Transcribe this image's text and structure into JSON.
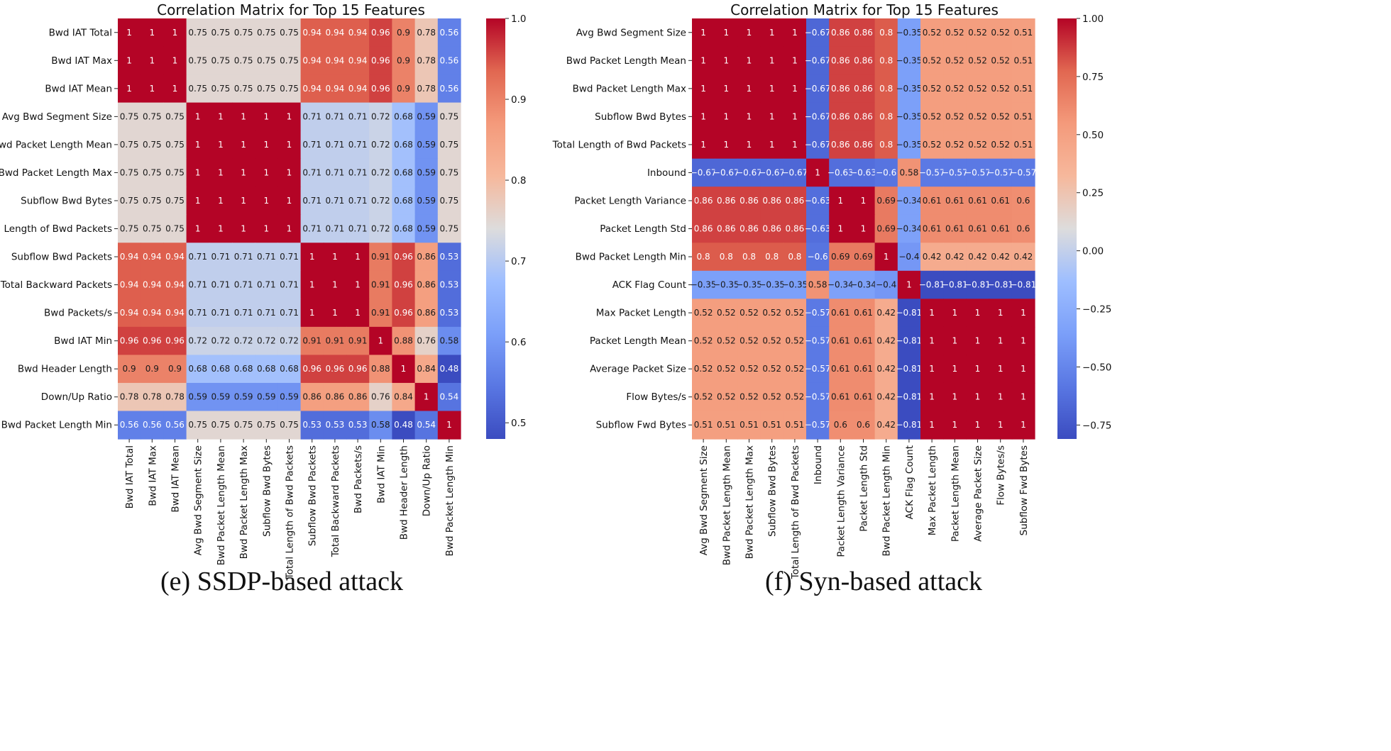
{
  "chart_data": [
    {
      "type": "heatmap",
      "title": "Correlation Matrix for Top 15 Features",
      "caption": "(e) SSDP-based attack",
      "labels": [
        "Bwd IAT Total",
        "Bwd IAT Max",
        "Bwd IAT Mean",
        "Avg Bwd Segment Size",
        "Bwd Packet Length Mean",
        "Bwd Packet Length Max",
        "Subflow Bwd Bytes",
        "Total Length of Bwd Packets",
        "Subflow Bwd Packets",
        "Total Backward Packets",
        "Bwd Packets/s",
        "Bwd IAT Min",
        "Bwd Header Length",
        "Down/Up Ratio",
        "Bwd Packet Length Min"
      ],
      "matrix": [
        [
          1,
          1,
          1,
          0.75,
          0.75,
          0.75,
          0.75,
          0.75,
          0.94,
          0.94,
          0.94,
          0.96,
          0.9,
          0.78,
          0.56
        ],
        [
          1,
          1,
          1,
          0.75,
          0.75,
          0.75,
          0.75,
          0.75,
          0.94,
          0.94,
          0.94,
          0.96,
          0.9,
          0.78,
          0.56
        ],
        [
          1,
          1,
          1,
          0.75,
          0.75,
          0.75,
          0.75,
          0.75,
          0.94,
          0.94,
          0.94,
          0.96,
          0.9,
          0.78,
          0.56
        ],
        [
          0.75,
          0.75,
          0.75,
          1,
          1,
          1,
          1,
          1,
          0.71,
          0.71,
          0.71,
          0.72,
          0.68,
          0.59,
          0.75
        ],
        [
          0.75,
          0.75,
          0.75,
          1,
          1,
          1,
          1,
          1,
          0.71,
          0.71,
          0.71,
          0.72,
          0.68,
          0.59,
          0.75
        ],
        [
          0.75,
          0.75,
          0.75,
          1,
          1,
          1,
          1,
          1,
          0.71,
          0.71,
          0.71,
          0.72,
          0.68,
          0.59,
          0.75
        ],
        [
          0.75,
          0.75,
          0.75,
          1,
          1,
          1,
          1,
          1,
          0.71,
          0.71,
          0.71,
          0.72,
          0.68,
          0.59,
          0.75
        ],
        [
          0.75,
          0.75,
          0.75,
          1,
          1,
          1,
          1,
          1,
          0.71,
          0.71,
          0.71,
          0.72,
          0.68,
          0.59,
          0.75
        ],
        [
          0.94,
          0.94,
          0.94,
          0.71,
          0.71,
          0.71,
          0.71,
          0.71,
          1,
          1,
          1,
          0.91,
          0.96,
          0.86,
          0.53
        ],
        [
          0.94,
          0.94,
          0.94,
          0.71,
          0.71,
          0.71,
          0.71,
          0.71,
          1,
          1,
          1,
          0.91,
          0.96,
          0.86,
          0.53
        ],
        [
          0.94,
          0.94,
          0.94,
          0.71,
          0.71,
          0.71,
          0.71,
          0.71,
          1,
          1,
          1,
          0.91,
          0.96,
          0.86,
          0.53
        ],
        [
          0.96,
          0.96,
          0.96,
          0.72,
          0.72,
          0.72,
          0.72,
          0.72,
          0.91,
          0.91,
          0.91,
          1,
          0.88,
          0.76,
          0.58
        ],
        [
          0.9,
          0.9,
          0.9,
          0.68,
          0.68,
          0.68,
          0.68,
          0.68,
          0.96,
          0.96,
          0.96,
          0.88,
          1,
          0.84,
          0.48
        ],
        [
          0.78,
          0.78,
          0.78,
          0.59,
          0.59,
          0.59,
          0.59,
          0.59,
          0.86,
          0.86,
          0.86,
          0.76,
          0.84,
          1,
          0.54
        ],
        [
          0.56,
          0.56,
          0.56,
          0.75,
          0.75,
          0.75,
          0.75,
          0.75,
          0.53,
          0.53,
          0.53,
          0.58,
          0.48,
          0.54,
          1
        ]
      ],
      "vmin": 0.48,
      "vmax": 1.0,
      "colorbar_ticks": [
        "1.0",
        "0.9",
        "0.8",
        "0.7",
        "0.6",
        "0.5"
      ],
      "colorbar_tick_values": [
        1.0,
        0.9,
        0.8,
        0.7,
        0.6,
        0.5
      ],
      "colormap": "coolwarm"
    },
    {
      "type": "heatmap",
      "title": "Correlation Matrix for Top 15 Features",
      "caption": "(f) Syn-based attack",
      "labels": [
        "Avg Bwd Segment Size",
        "Bwd Packet Length Mean",
        "Bwd Packet Length Max",
        "Subflow Bwd Bytes",
        "Total Length of Bwd Packets",
        "Inbound",
        "Packet Length Variance",
        "Packet Length Std",
        "Bwd Packet Length Min",
        "ACK Flag Count",
        "Max Packet Length",
        "Packet Length Mean",
        "Average Packet Size",
        "Flow Bytes/s",
        "Subflow Fwd Bytes"
      ],
      "matrix": [
        [
          1,
          1,
          1,
          1,
          1,
          -0.67,
          0.86,
          0.86,
          0.8,
          -0.35,
          0.52,
          0.52,
          0.52,
          0.52,
          0.51
        ],
        [
          1,
          1,
          1,
          1,
          1,
          -0.67,
          0.86,
          0.86,
          0.8,
          -0.35,
          0.52,
          0.52,
          0.52,
          0.52,
          0.51
        ],
        [
          1,
          1,
          1,
          1,
          1,
          -0.67,
          0.86,
          0.86,
          0.8,
          -0.35,
          0.52,
          0.52,
          0.52,
          0.52,
          0.51
        ],
        [
          1,
          1,
          1,
          1,
          1,
          -0.67,
          0.86,
          0.86,
          0.8,
          -0.35,
          0.52,
          0.52,
          0.52,
          0.52,
          0.51
        ],
        [
          1,
          1,
          1,
          1,
          1,
          -0.67,
          0.86,
          0.86,
          0.8,
          -0.35,
          0.52,
          0.52,
          0.52,
          0.52,
          0.51
        ],
        [
          -0.67,
          -0.67,
          -0.67,
          -0.67,
          -0.67,
          1,
          -0.63,
          -0.63,
          -0.6,
          0.58,
          -0.57,
          -0.57,
          -0.57,
          -0.57,
          -0.57
        ],
        [
          0.86,
          0.86,
          0.86,
          0.86,
          0.86,
          -0.63,
          1,
          1,
          0.69,
          -0.34,
          0.61,
          0.61,
          0.61,
          0.61,
          0.6
        ],
        [
          0.86,
          0.86,
          0.86,
          0.86,
          0.86,
          -0.63,
          1,
          1,
          0.69,
          -0.34,
          0.61,
          0.61,
          0.61,
          0.61,
          0.6
        ],
        [
          0.8,
          0.8,
          0.8,
          0.8,
          0.8,
          -0.6,
          0.69,
          0.69,
          1,
          -0.4,
          0.42,
          0.42,
          0.42,
          0.42,
          0.42
        ],
        [
          -0.35,
          -0.35,
          -0.35,
          -0.35,
          -0.35,
          0.58,
          -0.34,
          -0.34,
          -0.4,
          1,
          -0.81,
          -0.81,
          -0.81,
          -0.81,
          -0.81
        ],
        [
          0.52,
          0.52,
          0.52,
          0.52,
          0.52,
          -0.57,
          0.61,
          0.61,
          0.42,
          -0.81,
          1,
          1,
          1,
          1,
          1
        ],
        [
          0.52,
          0.52,
          0.52,
          0.52,
          0.52,
          -0.57,
          0.61,
          0.61,
          0.42,
          -0.81,
          1,
          1,
          1,
          1,
          1
        ],
        [
          0.52,
          0.52,
          0.52,
          0.52,
          0.52,
          -0.57,
          0.61,
          0.61,
          0.42,
          -0.81,
          1,
          1,
          1,
          1,
          1
        ],
        [
          0.52,
          0.52,
          0.52,
          0.52,
          0.52,
          -0.57,
          0.61,
          0.61,
          0.42,
          -0.81,
          1,
          1,
          1,
          1,
          1
        ],
        [
          0.51,
          0.51,
          0.51,
          0.51,
          0.51,
          -0.57,
          0.6,
          0.6,
          0.42,
          -0.81,
          1,
          1,
          1,
          1,
          1
        ]
      ],
      "vmin": -0.81,
      "vmax": 1.0,
      "colorbar_ticks": [
        "1.00",
        "0.75",
        "0.50",
        "0.25",
        "0.00",
        "−0.25",
        "−0.50",
        "−0.75"
      ],
      "colorbar_tick_values": [
        1.0,
        0.75,
        0.5,
        0.25,
        0.0,
        -0.25,
        -0.5,
        -0.75
      ],
      "colormap": "coolwarm"
    }
  ]
}
